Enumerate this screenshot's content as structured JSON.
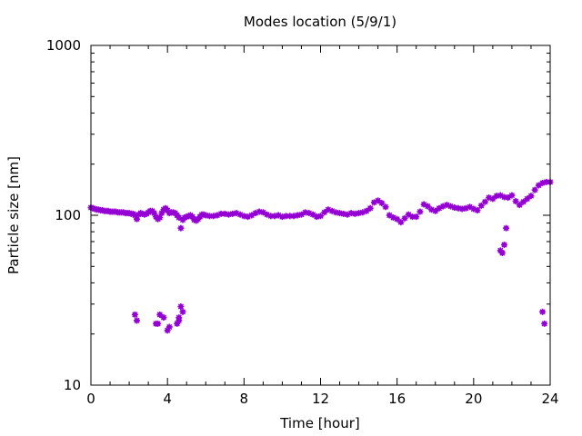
{
  "chart_data": {
    "type": "scatter",
    "title": "Modes location (5/9/1)",
    "xlabel": "Time [hour]",
    "ylabel": "Particle size [nm]",
    "xlim": [
      0,
      24
    ],
    "ylim": [
      10,
      1000
    ],
    "yscale": "log",
    "x_ticks": [
      0,
      4,
      8,
      12,
      16,
      20,
      24
    ],
    "x_tick_labels": [
      "0",
      "4",
      "8",
      "12",
      "16",
      "20",
      "24"
    ],
    "y_ticks": [
      10,
      100,
      1000
    ],
    "y_tick_labels": [
      "10",
      "100",
      "1000"
    ],
    "grid": false,
    "legend": "none",
    "marker_color": "#9400d3",
    "series": [
      {
        "points": [
          [
            0.0,
            111
          ],
          [
            0.1,
            110
          ],
          [
            0.2,
            109
          ],
          [
            0.3,
            108
          ],
          [
            0.4,
            108
          ],
          [
            0.5,
            107
          ],
          [
            0.6,
            107
          ],
          [
            0.7,
            106
          ],
          [
            0.8,
            106
          ],
          [
            0.9,
            106
          ],
          [
            1.0,
            105
          ],
          [
            1.1,
            105
          ],
          [
            1.2,
            105
          ],
          [
            1.3,
            105
          ],
          [
            1.4,
            104
          ],
          [
            1.5,
            104
          ],
          [
            1.6,
            104
          ],
          [
            1.7,
            104
          ],
          [
            1.8,
            103
          ],
          [
            1.9,
            103
          ],
          [
            2.0,
            103
          ],
          [
            2.1,
            102
          ],
          [
            2.2,
            102
          ],
          [
            2.3,
            100
          ],
          [
            2.4,
            95
          ],
          [
            2.5,
            101
          ],
          [
            2.6,
            103
          ],
          [
            2.7,
            102
          ],
          [
            2.8,
            101
          ],
          [
            2.9,
            102
          ],
          [
            3.0,
            104
          ],
          [
            3.1,
            106
          ],
          [
            3.2,
            106
          ],
          [
            3.3,
            103
          ],
          [
            3.4,
            98
          ],
          [
            3.5,
            95
          ],
          [
            3.6,
            97
          ],
          [
            3.7,
            103
          ],
          [
            3.8,
            108
          ],
          [
            3.9,
            110
          ],
          [
            4.0,
            107
          ],
          [
            4.1,
            103
          ],
          [
            4.2,
            104
          ],
          [
            4.3,
            104
          ],
          [
            4.4,
            103
          ],
          [
            4.5,
            100
          ],
          [
            4.6,
            97
          ],
          [
            4.7,
            84
          ],
          [
            4.8,
            94
          ],
          [
            4.9,
            97
          ],
          [
            5.0,
            98
          ],
          [
            5.1,
            99
          ],
          [
            5.2,
            100
          ],
          [
            5.3,
            98
          ],
          [
            5.4,
            94
          ],
          [
            5.5,
            93
          ],
          [
            5.6,
            95
          ],
          [
            5.7,
            98
          ],
          [
            5.8,
            101
          ],
          [
            5.9,
            101
          ],
          [
            6.0,
            100
          ],
          [
            6.2,
            99
          ],
          [
            6.4,
            99
          ],
          [
            6.6,
            100
          ],
          [
            6.8,
            102
          ],
          [
            7.0,
            102
          ],
          [
            7.2,
            101
          ],
          [
            7.4,
            102
          ],
          [
            7.6,
            103
          ],
          [
            7.8,
            101
          ],
          [
            8.0,
            99
          ],
          [
            8.2,
            98
          ],
          [
            8.4,
            100
          ],
          [
            8.6,
            103
          ],
          [
            8.8,
            105
          ],
          [
            9.0,
            104
          ],
          [
            9.2,
            101
          ],
          [
            9.4,
            99
          ],
          [
            9.6,
            99
          ],
          [
            9.8,
            100
          ],
          [
            10.0,
            98
          ],
          [
            10.2,
            99
          ],
          [
            10.4,
            99
          ],
          [
            10.6,
            99
          ],
          [
            10.8,
            100
          ],
          [
            11.0,
            101
          ],
          [
            11.2,
            104
          ],
          [
            11.4,
            103
          ],
          [
            11.6,
            101
          ],
          [
            11.8,
            98
          ],
          [
            12.0,
            99
          ],
          [
            12.2,
            104
          ],
          [
            12.4,
            108
          ],
          [
            12.6,
            106
          ],
          [
            12.8,
            104
          ],
          [
            13.0,
            103
          ],
          [
            13.2,
            102
          ],
          [
            13.4,
            101
          ],
          [
            13.6,
            103
          ],
          [
            13.8,
            102
          ],
          [
            14.0,
            103
          ],
          [
            14.2,
            104
          ],
          [
            14.4,
            106
          ],
          [
            14.6,
            110
          ],
          [
            14.8,
            119
          ],
          [
            15.0,
            122
          ],
          [
            15.2,
            118
          ],
          [
            15.4,
            112
          ],
          [
            15.6,
            100
          ],
          [
            15.8,
            97
          ],
          [
            16.0,
            95
          ],
          [
            16.2,
            91
          ],
          [
            16.4,
            96
          ],
          [
            16.6,
            101
          ],
          [
            16.8,
            98
          ],
          [
            17.0,
            98
          ],
          [
            17.2,
            105
          ],
          [
            17.4,
            116
          ],
          [
            17.6,
            113
          ],
          [
            17.8,
            108
          ],
          [
            18.0,
            106
          ],
          [
            18.2,
            110
          ],
          [
            18.4,
            113
          ],
          [
            18.6,
            115
          ],
          [
            18.8,
            113
          ],
          [
            19.0,
            111
          ],
          [
            19.2,
            110
          ],
          [
            19.4,
            109
          ],
          [
            19.6,
            110
          ],
          [
            19.8,
            112
          ],
          [
            20.0,
            109
          ],
          [
            20.2,
            107
          ],
          [
            20.4,
            114
          ],
          [
            20.6,
            120
          ],
          [
            20.8,
            127
          ],
          [
            21.0,
            125
          ],
          [
            21.2,
            130
          ],
          [
            21.4,
            131
          ],
          [
            21.6,
            128
          ],
          [
            21.8,
            127
          ],
          [
            22.0,
            131
          ],
          [
            22.2,
            121
          ],
          [
            22.4,
            115
          ],
          [
            22.6,
            120
          ],
          [
            22.8,
            125
          ],
          [
            23.0,
            130
          ],
          [
            23.2,
            141
          ],
          [
            23.4,
            150
          ],
          [
            23.6,
            155
          ],
          [
            23.8,
            157
          ],
          [
            24.0,
            157
          ],
          [
            2.3,
            26
          ],
          [
            2.4,
            24
          ],
          [
            3.4,
            23
          ],
          [
            3.5,
            23
          ],
          [
            3.6,
            26
          ],
          [
            3.8,
            25
          ],
          [
            4.0,
            21
          ],
          [
            4.1,
            22
          ],
          [
            4.5,
            23
          ],
          [
            4.6,
            24
          ],
          [
            4.7,
            29
          ],
          [
            4.8,
            27
          ],
          [
            4.6,
            25
          ],
          [
            21.4,
            62
          ],
          [
            21.5,
            60
          ],
          [
            21.6,
            67
          ],
          [
            21.7,
            84
          ],
          [
            23.6,
            27
          ],
          [
            23.7,
            23
          ]
        ]
      }
    ]
  }
}
